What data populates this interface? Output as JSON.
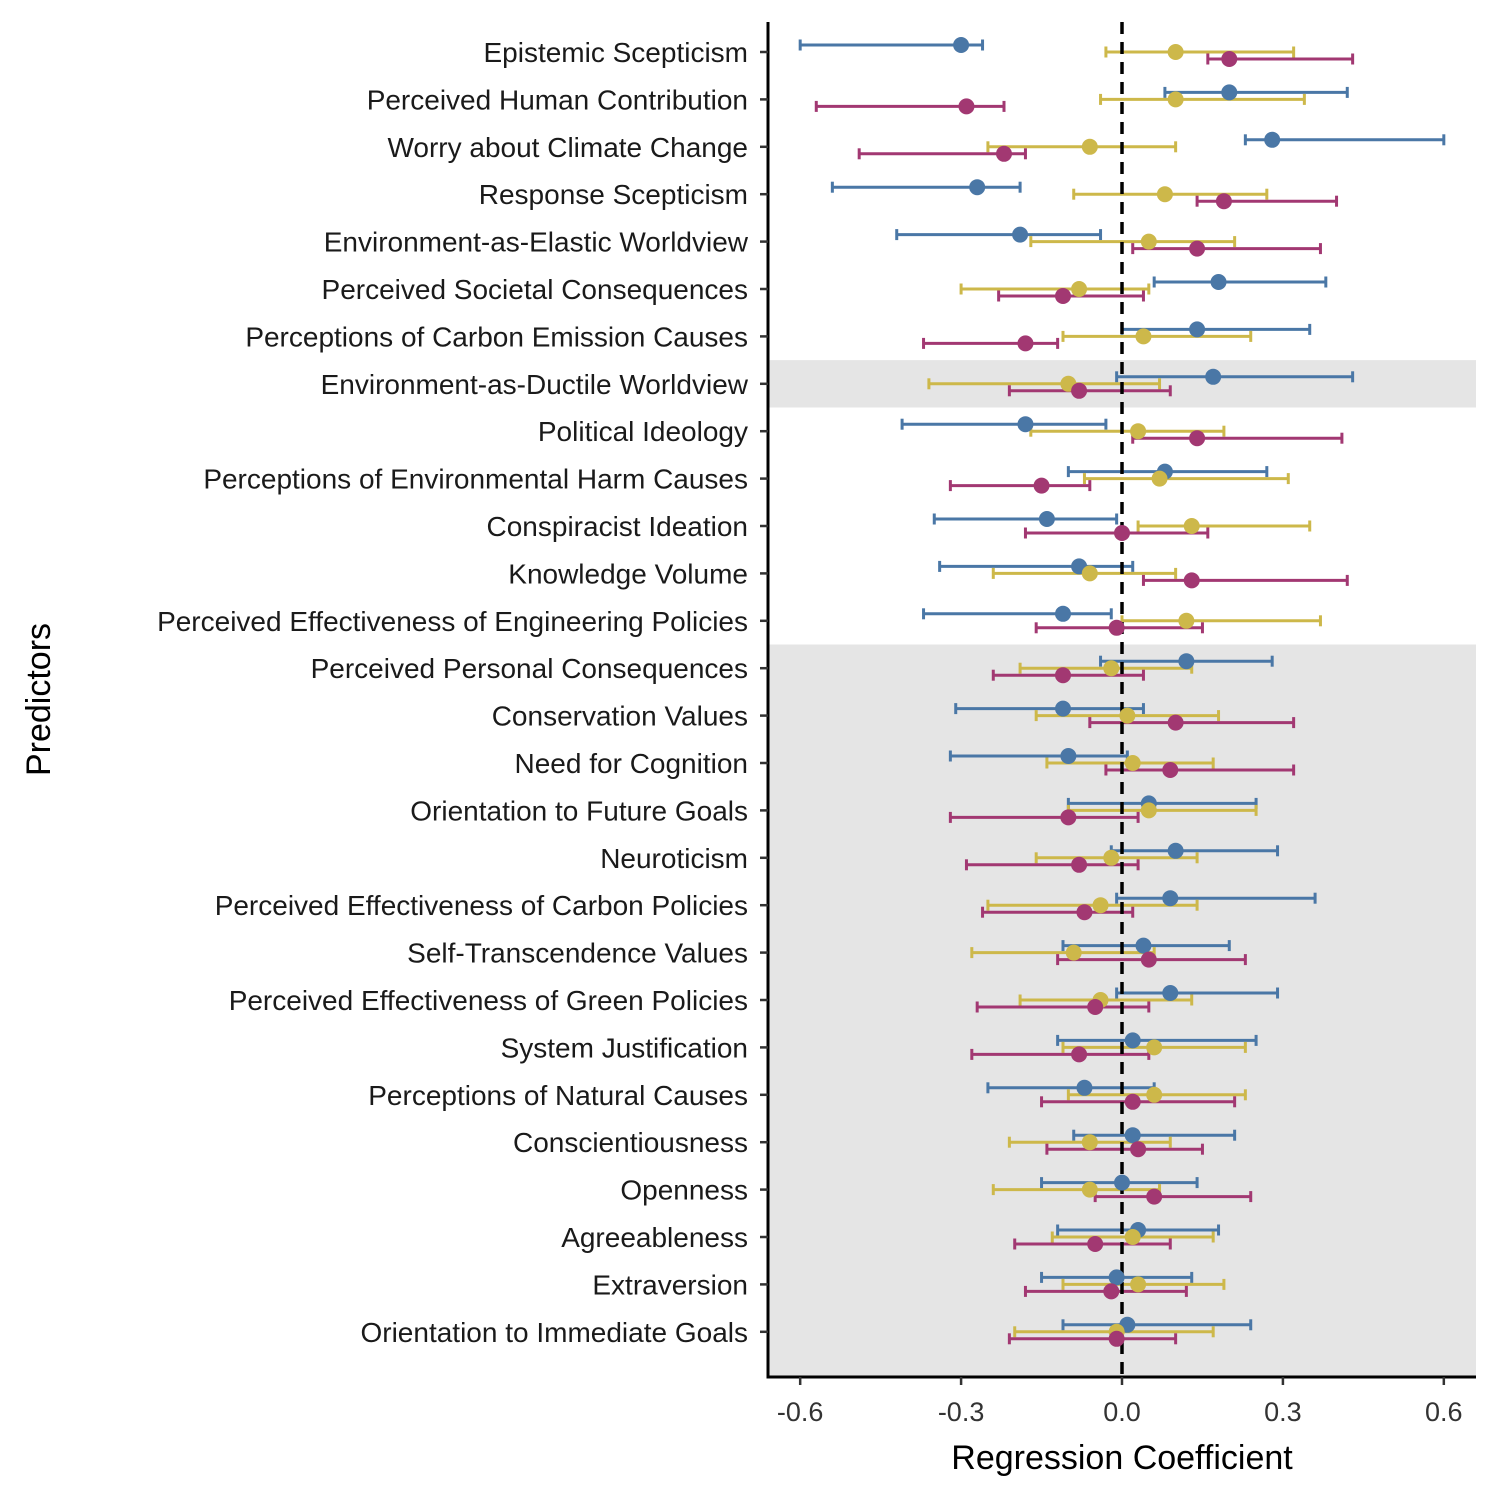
{
  "chart_data": {
    "type": "forest",
    "xlabel": "Regression Coefficient",
    "ylabel": "Predictors",
    "x_ticks": [
      -0.6,
      -0.3,
      0.0,
      0.3,
      0.6
    ],
    "x_tick_labels": [
      "-0.6",
      "-0.3",
      "0.0",
      "0.3",
      "0.6"
    ],
    "xlim": [
      -0.66,
      0.66
    ],
    "reference_line": 0,
    "shaded_rows": [
      "Environment-as-Ductile Worldview",
      "Perceived Personal Consequences",
      "Conservation Values",
      "Need for Cognition",
      "Orientation to Future Goals",
      "Neuroticism",
      "Perceived Effectiveness of Carbon Policies",
      "Self-Transcendence Values",
      "Perceived Effectiveness of Green Policies",
      "System Justification",
      "Perceptions of Natural Causes",
      "Conscientiousness",
      "Openness",
      "Agreeableness",
      "Extraversion",
      "Orientation to Immediate Goals"
    ],
    "categories": [
      "Epistemic Scepticism",
      "Perceived Human Contribution",
      "Worry about Climate Change",
      "Response Scepticism",
      "Environment-as-Elastic Worldview",
      "Perceived Societal Consequences",
      "Perceptions of Carbon Emission Causes",
      "Environment-as-Ductile Worldview",
      "Political Ideology",
      "Perceptions of Environmental Harm Causes",
      "Conspiracist Ideation",
      "Knowledge Volume",
      "Perceived Effectiveness of Engineering Policies",
      "Perceived Personal Consequences",
      "Conservation Values",
      "Need for Cognition",
      "Orientation to Future Goals",
      "Neuroticism",
      "Perceived Effectiveness of Carbon Policies",
      "Self-Transcendence Values",
      "Perceived Effectiveness of Green Policies",
      "System Justification",
      "Perceptions of Natural Causes",
      "Conscientiousness",
      "Openness",
      "Agreeableness",
      "Extraversion",
      "Orientation to Immediate Goals"
    ],
    "series": [
      {
        "color": "#4a77a6",
        "estimates": [
          -0.3,
          0.2,
          0.28,
          -0.27,
          -0.19,
          0.18,
          0.14,
          0.17,
          -0.18,
          0.08,
          -0.14,
          -0.08,
          -0.11,
          0.12,
          -0.11,
          -0.1,
          0.05,
          0.1,
          0.09,
          0.04,
          0.09,
          0.02,
          -0.07,
          0.02,
          0.0,
          0.03,
          -0.01,
          0.01
        ],
        "lower": [
          -0.6,
          0.08,
          0.23,
          -0.54,
          -0.42,
          0.06,
          0.0,
          -0.01,
          -0.41,
          -0.1,
          -0.35,
          -0.34,
          -0.37,
          -0.04,
          -0.31,
          -0.32,
          -0.1,
          -0.02,
          -0.01,
          -0.11,
          -0.01,
          -0.12,
          -0.25,
          -0.09,
          -0.15,
          -0.12,
          -0.15,
          -0.11
        ],
        "upper": [
          -0.26,
          0.42,
          0.6,
          -0.19,
          -0.04,
          0.38,
          0.35,
          0.43,
          -0.03,
          0.27,
          -0.01,
          0.02,
          -0.02,
          0.28,
          0.04,
          0.01,
          0.25,
          0.29,
          0.36,
          0.2,
          0.29,
          0.25,
          0.06,
          0.21,
          0.14,
          0.18,
          0.13,
          0.24
        ]
      },
      {
        "color": "#cdb84a",
        "estimates": [
          0.1,
          0.1,
          -0.06,
          0.08,
          0.05,
          -0.08,
          0.04,
          -0.1,
          0.03,
          0.07,
          0.13,
          -0.06,
          0.12,
          -0.02,
          0.01,
          0.02,
          0.05,
          -0.02,
          -0.04,
          -0.09,
          -0.04,
          0.06,
          0.06,
          -0.06,
          -0.06,
          0.02,
          0.03,
          -0.01
        ],
        "lower": [
          -0.03,
          -0.04,
          -0.25,
          -0.09,
          -0.17,
          -0.3,
          -0.11,
          -0.36,
          -0.17,
          -0.07,
          0.03,
          -0.24,
          0.0,
          -0.19,
          -0.16,
          -0.14,
          -0.1,
          -0.16,
          -0.25,
          -0.28,
          -0.19,
          -0.11,
          -0.1,
          -0.21,
          -0.24,
          -0.13,
          -0.11,
          -0.2
        ],
        "upper": [
          0.32,
          0.34,
          0.1,
          0.27,
          0.21,
          0.05,
          0.24,
          0.07,
          0.19,
          0.31,
          0.35,
          0.1,
          0.37,
          0.13,
          0.18,
          0.17,
          0.25,
          0.14,
          0.14,
          0.06,
          0.13,
          0.23,
          0.23,
          0.09,
          0.07,
          0.17,
          0.19,
          0.17
        ]
      },
      {
        "color": "#a23872",
        "estimates": [
          0.2,
          -0.29,
          -0.22,
          0.19,
          0.14,
          -0.11,
          -0.18,
          -0.08,
          0.14,
          -0.15,
          0.0,
          0.13,
          -0.01,
          -0.11,
          0.1,
          0.09,
          -0.1,
          -0.08,
          -0.07,
          0.05,
          -0.05,
          -0.08,
          0.02,
          0.03,
          0.06,
          -0.05,
          -0.02,
          -0.01
        ],
        "lower": [
          0.16,
          -0.57,
          -0.49,
          0.14,
          0.02,
          -0.23,
          -0.37,
          -0.21,
          0.02,
          -0.32,
          -0.18,
          0.04,
          -0.16,
          -0.24,
          -0.06,
          -0.03,
          -0.32,
          -0.29,
          -0.26,
          -0.12,
          -0.27,
          -0.28,
          -0.15,
          -0.14,
          -0.05,
          -0.2,
          -0.18,
          -0.21
        ],
        "upper": [
          0.43,
          -0.22,
          -0.18,
          0.4,
          0.37,
          0.04,
          -0.12,
          0.09,
          0.41,
          -0.06,
          0.16,
          0.42,
          0.15,
          0.04,
          0.32,
          0.32,
          0.03,
          0.03,
          0.02,
          0.23,
          0.05,
          0.05,
          0.21,
          0.15,
          0.24,
          0.09,
          0.12,
          0.1
        ]
      }
    ]
  }
}
